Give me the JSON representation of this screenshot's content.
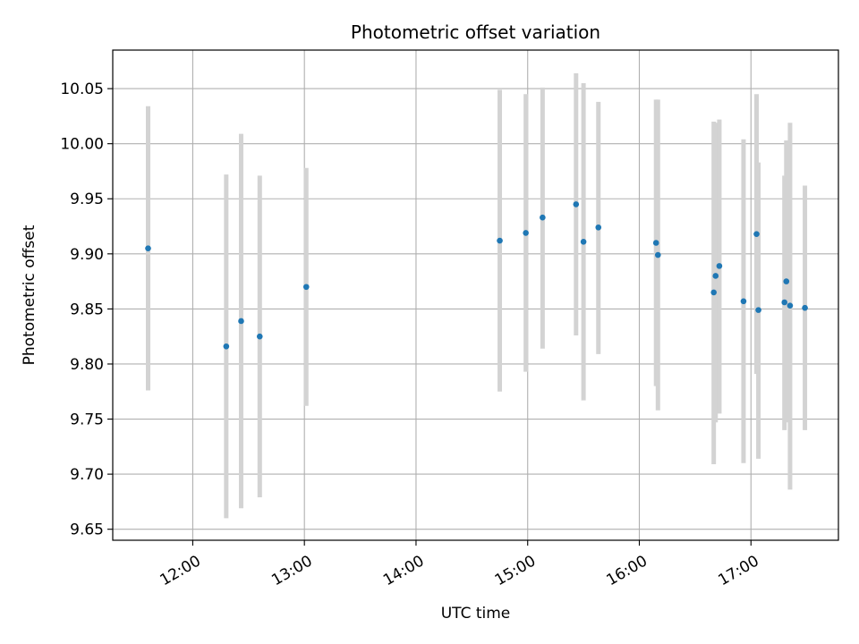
{
  "chart_data": {
    "type": "scatter",
    "title": "Photometric offset variation",
    "xlabel": "UTC time",
    "ylabel": "Photometric offset",
    "x_ticks": [
      "12:00",
      "13:00",
      "14:00",
      "15:00",
      "16:00",
      "17:00"
    ],
    "y_ticks": [
      "9.65",
      "9.70",
      "9.75",
      "9.80",
      "9.85",
      "9.90",
      "9.95",
      "10.00",
      "10.05"
    ],
    "xlim": [
      "11:17",
      "17:47"
    ],
    "ylim": [
      9.64,
      10.085
    ],
    "grid": true,
    "colors": {
      "point": "#1f77b4",
      "errorbar": "#d3d3d3",
      "grid": "#b0b0b0"
    },
    "series": [
      {
        "points": [
          {
            "x": "11:36",
            "y": 9.905,
            "low": 9.776,
            "high": 10.034
          },
          {
            "x": "12:18",
            "y": 9.816,
            "low": 9.66,
            "high": 9.972
          },
          {
            "x": "12:26",
            "y": 9.839,
            "low": 9.669,
            "high": 10.009
          },
          {
            "x": "12:36",
            "y": 9.825,
            "low": 9.679,
            "high": 9.971
          },
          {
            "x": "13:01",
            "y": 9.87,
            "low": 9.762,
            "high": 9.978
          },
          {
            "x": "14:45",
            "y": 9.912,
            "low": 9.775,
            "high": 10.049
          },
          {
            "x": "14:59",
            "y": 9.919,
            "low": 9.793,
            "high": 10.045
          },
          {
            "x": "15:08",
            "y": 9.933,
            "low": 9.814,
            "high": 10.051
          },
          {
            "x": "15:26",
            "y": 9.945,
            "low": 9.826,
            "high": 10.064
          },
          {
            "x": "15:30",
            "y": 9.911,
            "low": 9.767,
            "high": 10.055
          },
          {
            "x": "15:38",
            "y": 9.924,
            "low": 9.809,
            "high": 10.038
          },
          {
            "x": "16:09",
            "y": 9.91,
            "low": 9.78,
            "high": 10.04
          },
          {
            "x": "16:10",
            "y": 9.899,
            "low": 9.758,
            "high": 10.04
          },
          {
            "x": "16:40",
            "y": 9.865,
            "low": 9.709,
            "high": 10.02
          },
          {
            "x": "16:41",
            "y": 9.88,
            "low": 9.747,
            "high": 10.019
          },
          {
            "x": "16:43",
            "y": 9.889,
            "low": 9.755,
            "high": 10.022
          },
          {
            "x": "16:56",
            "y": 9.857,
            "low": 9.71,
            "high": 10.004
          },
          {
            "x": "17:03",
            "y": 9.918,
            "low": 9.791,
            "high": 10.045
          },
          {
            "x": "17:04",
            "y": 9.849,
            "low": 9.714,
            "high": 9.983
          },
          {
            "x": "17:18",
            "y": 9.856,
            "low": 9.74,
            "high": 9.971
          },
          {
            "x": "17:19",
            "y": 9.875,
            "low": 9.747,
            "high": 10.003
          },
          {
            "x": "17:21",
            "y": 9.853,
            "low": 9.686,
            "high": 10.019
          },
          {
            "x": "17:29",
            "y": 9.851,
            "low": 9.74,
            "high": 9.962
          }
        ]
      }
    ]
  }
}
